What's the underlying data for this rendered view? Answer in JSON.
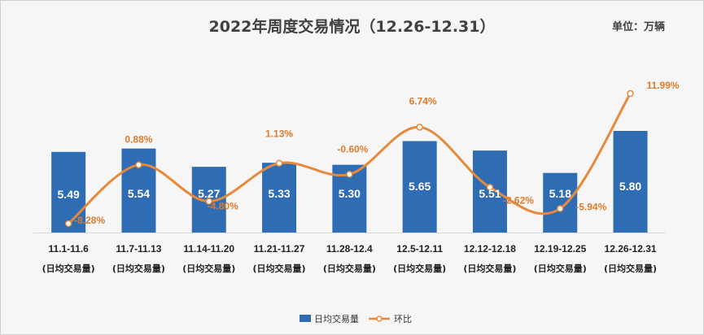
{
  "chart_data": {
    "type": "bar+line",
    "title": "2022年周度交易情况（12.26-12.31）",
    "unit": "单位：万辆",
    "categories": [
      "11.1-11.6",
      "11.7-11.13",
      "11.14-11.20",
      "11.21-11.27",
      "11.28-12.4",
      "12.5-12.11",
      "12.12-12.18",
      "12.19-12.25",
      "12.26-12.31"
    ],
    "category_sublabel": "(日均交易量)",
    "series": [
      {
        "name": "日均交易量",
        "kind": "bar",
        "values": [
          5.49,
          5.54,
          5.27,
          5.33,
          5.3,
          5.65,
          5.51,
          5.18,
          5.8
        ],
        "labels": [
          "5.49",
          "5.54",
          "5.27",
          "5.33",
          "5.30",
          "5.65",
          "5.51",
          "5.18",
          "5.80"
        ]
      },
      {
        "name": "环比",
        "kind": "line",
        "values": [
          -8.28,
          0.88,
          -4.8,
          1.13,
          -0.6,
          6.74,
          -2.62,
          -5.94,
          11.99
        ],
        "labels": [
          "-8.28%",
          "0.88%",
          "-4.80%",
          "1.13%",
          "-0.60%",
          "6.74%",
          "-2.62%",
          "-5.94%",
          "11.99%"
        ]
      }
    ],
    "colors": {
      "bar": "#2e6db4",
      "line": "#e8883a",
      "line_label": "#e07b2c",
      "bar_label": "#ffffff",
      "axis_text": "#222222"
    },
    "legend_position": "bottom-center",
    "grid": false
  }
}
